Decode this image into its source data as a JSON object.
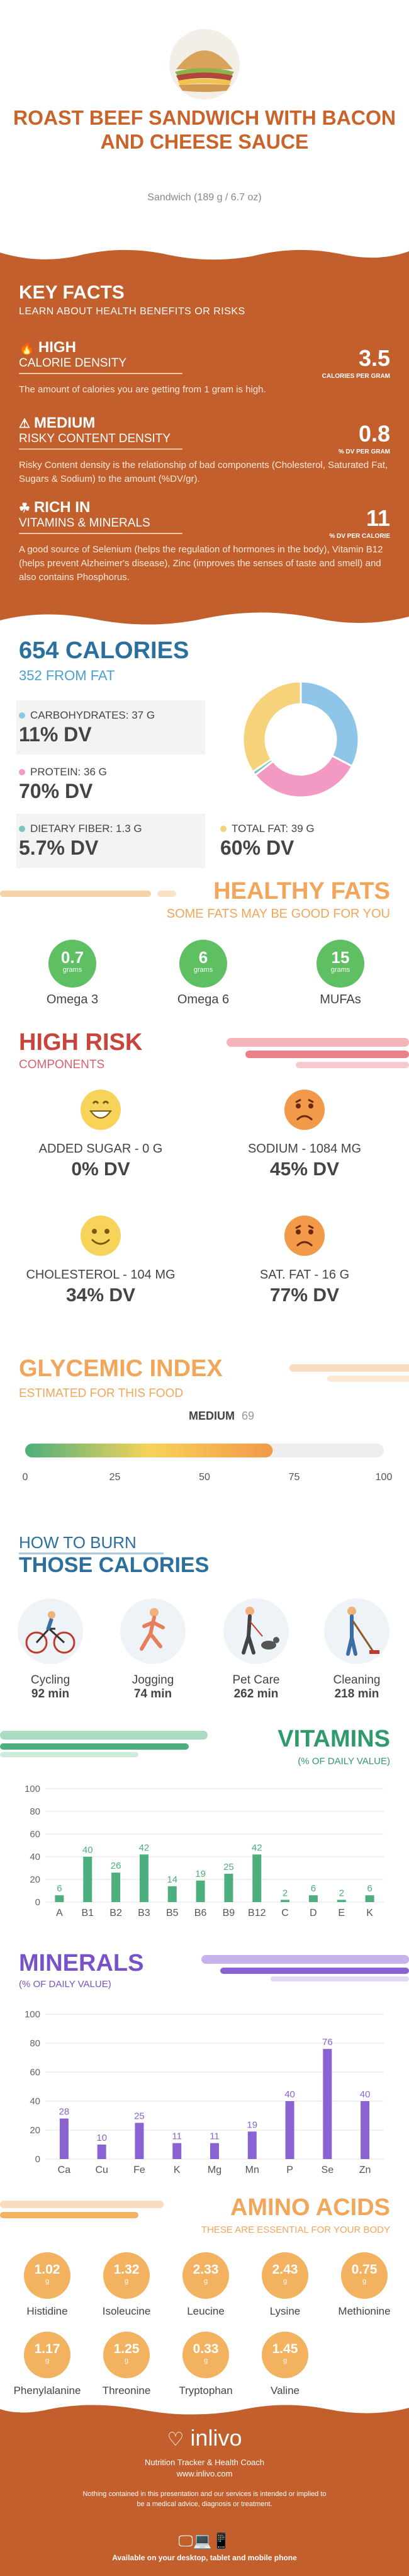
{
  "header": {
    "title": "ROAST BEEF SANDWICH WITH BACON AND CHEESE SAUCE",
    "subtitle": "Sandwich (189 g / 6.7 oz)"
  },
  "key_facts": {
    "title": "KEY FACTS",
    "subtitle": "LEARN ABOUT HEALTH BENEFITS OR RISKS",
    "items": [
      {
        "level": "HIGH",
        "what": "CALORIE DENSITY",
        "value": "3.5",
        "unit": "CALORIES PER GRAM",
        "desc": "The amount of calories you are getting from 1 gram is high."
      },
      {
        "level": "MEDIUM",
        "what": "RISKY CONTENT DENSITY",
        "value": "0.8",
        "unit": "% DV PER GRAM",
        "desc": "Risky Content density is the relationship of bad components (Cholesterol, Saturated Fat, Sugars & Sodium) to the amount (%DV/gr)."
      },
      {
        "level": "RICH IN",
        "what": "VITAMINS & MINERALS",
        "value": "11",
        "unit": "% DV PER CALORIE",
        "desc": "A good source of Selenium (helps the regulation of hormones in the body), Vitamin B12 (helps prevent Alzheimer's disease), Zinc (improves the senses of taste and smell) and also contains Phosphorus."
      }
    ]
  },
  "calories": {
    "total": "654 CALORIES",
    "from_fat": "352 FROM FAT",
    "items": [
      {
        "label": "CARBOHYDRATES: 37 g",
        "dv": "11% DV",
        "color": "#8fc5e8"
      },
      {
        "label": "PROTEIN: 36 g",
        "dv": "70% DV",
        "color": "#f29ac4"
      },
      {
        "label": "DIETARY FIBER: 1.3 g",
        "dv": "5.7% DV",
        "color": "#79c6b8"
      },
      {
        "label": "TOTAL FAT: 39 g",
        "dv": "60% DV",
        "color": "#f6d27a"
      }
    ],
    "donut": [
      {
        "name": "carbohydrates",
        "value": 37,
        "color": "#8fc5e8"
      },
      {
        "name": "protein",
        "value": 36,
        "color": "#f29ac4"
      },
      {
        "name": "fiber",
        "value": 1.3,
        "color": "#79c6b8"
      },
      {
        "name": "fat",
        "value": 39,
        "color": "#f6d27a"
      }
    ]
  },
  "healthy_fats": {
    "title": "HEALTHY FATS",
    "subtitle": "SOME FATS MAY BE GOOD FOR YOU",
    "unit": "grams",
    "items": [
      {
        "value": "0.7",
        "name": "Omega 3"
      },
      {
        "value": "6",
        "name": "Omega 6"
      },
      {
        "value": "15",
        "name": "MUFAs"
      }
    ]
  },
  "high_risk": {
    "title": "HIGH RISK",
    "subtitle": "COMPONENTS",
    "items": [
      {
        "label": "ADDED SUGAR - 0 g",
        "dv": "0% DV",
        "mood": "happy",
        "color": "#f7d35a"
      },
      {
        "label": "SODIUM - 1084 mg",
        "dv": "45% DV",
        "mood": "sad",
        "color": "#f2994a"
      },
      {
        "label": "CHOLESTEROL - 104 mg",
        "dv": "34% DV",
        "mood": "smile",
        "color": "#f7d35a"
      },
      {
        "label": "SAT. FAT - 16 g",
        "dv": "77% DV",
        "mood": "sad",
        "color": "#f2994a"
      }
    ]
  },
  "glycemic": {
    "title": "GLYCEMIC INDEX",
    "subtitle": "ESTIMATED FOR THIS FOOD",
    "level": "MEDIUM",
    "value": 69,
    "value_label": "69",
    "ticks": [
      "0",
      "25",
      "50",
      "75",
      "100"
    ]
  },
  "burn": {
    "title1": "HOW TO BURN",
    "title2": "THOSE CALORIES",
    "items": [
      {
        "name": "Cycling",
        "mins": "92 min",
        "icon": "cycling-icon"
      },
      {
        "name": "Jogging",
        "mins": "74 min",
        "icon": "jogging-icon"
      },
      {
        "name": "Pet Care",
        "mins": "262 min",
        "icon": "pet-care-icon"
      },
      {
        "name": "Cleaning",
        "mins": "218 min",
        "icon": "cleaning-icon"
      }
    ]
  },
  "vitamins": {
    "title": "VITAMINS",
    "subtitle": "(% OF DAILY VALUE)",
    "chart_data": {
      "type": "bar",
      "categories": [
        "A",
        "B1",
        "B2",
        "B3",
        "B5",
        "B6",
        "B9",
        "B12",
        "C",
        "D",
        "E",
        "K"
      ],
      "values": [
        6,
        40,
        26,
        42,
        14,
        19,
        25,
        42,
        2,
        6,
        2,
        6
      ],
      "ylim": [
        0,
        100
      ],
      "yticks": [
        "0",
        "20",
        "40",
        "60",
        "80",
        "100"
      ],
      "color": "#4caf7d"
    }
  },
  "minerals": {
    "title": "MINERALS",
    "subtitle": "(% OF DAILY VALUE)",
    "chart_data": {
      "type": "bar",
      "categories": [
        "Ca",
        "Cu",
        "Fe",
        "K",
        "Mg",
        "Mn",
        "P",
        "Se",
        "Zn"
      ],
      "values": [
        28,
        10,
        25,
        11,
        11,
        19,
        40,
        76,
        40
      ],
      "ylim": [
        0,
        100
      ],
      "yticks": [
        "0",
        "20",
        "40",
        "60",
        "80",
        "100"
      ],
      "color": "#8a63d2"
    }
  },
  "amino_acids": {
    "title": "AMINO ACIDS",
    "subtitle": "THESE ARE ESSENTIAL FOR YOUR BODY",
    "unit": "g",
    "items": [
      {
        "value": "1.02",
        "name": "Histidine"
      },
      {
        "value": "1.32",
        "name": "Isoleucine"
      },
      {
        "value": "2.33",
        "name": "Leucine"
      },
      {
        "value": "2.43",
        "name": "Lysine"
      },
      {
        "value": "0.75",
        "name": "Methionine"
      },
      {
        "value": "1.17",
        "name": "Phenylalanine"
      },
      {
        "value": "1.25",
        "name": "Threonine"
      },
      {
        "value": "0.33",
        "name": "Tryptophan"
      },
      {
        "value": "1.45",
        "name": "Valine"
      }
    ]
  },
  "footer": {
    "brand": "inlivo",
    "tagline": "Nutrition Tracker & Health Coach",
    "url": "www.inlivo.com",
    "disclaimer": "Nothing contained in this presentation and our services is intended or implied to be a medical advice, diagnosis or treatment.",
    "available": "Available on your desktop, tablet and mobile phone"
  }
}
